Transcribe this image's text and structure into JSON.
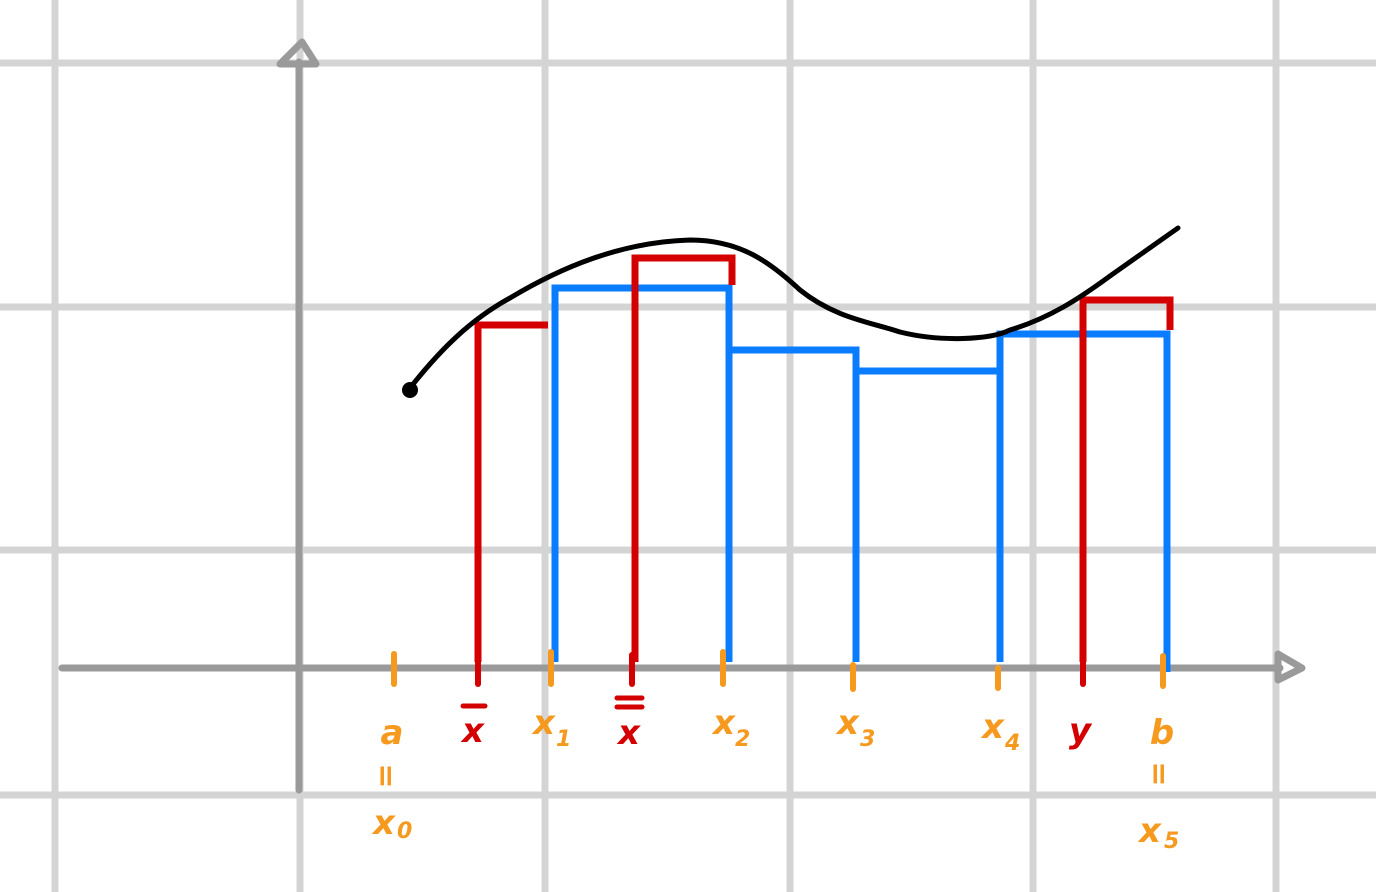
{
  "colors": {
    "grid": "#d4d4d4",
    "axis": "#9a9a9a",
    "curve": "#000000",
    "blue": "#0a7cff",
    "red": "#d40000",
    "orange": "#f59a1f"
  },
  "x_labels": [
    {
      "id": "a",
      "main": "a",
      "equals": "=",
      "alias": "x",
      "alias_sub": "0"
    },
    {
      "id": "x1",
      "main": "x",
      "sub": "1"
    },
    {
      "id": "x2",
      "main": "x",
      "sub": "2"
    },
    {
      "id": "x3",
      "main": "x",
      "sub": "3"
    },
    {
      "id": "x4",
      "main": "x",
      "sub": "4"
    },
    {
      "id": "b",
      "main": "b",
      "equals": "=",
      "alias": "x",
      "alias_sub": "5"
    }
  ],
  "red_labels": [
    {
      "id": "xbar",
      "text": "x"
    },
    {
      "id": "xbarbar",
      "text": "x"
    },
    {
      "id": "y",
      "text": "y"
    }
  ]
}
